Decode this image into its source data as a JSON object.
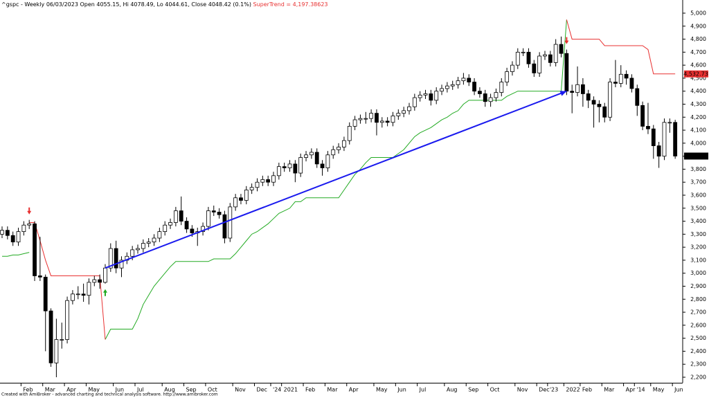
{
  "chart_data": {
    "type": "candlestick",
    "title": "^gspc - Weekly 06/03/2023 Open 4055.15, Hi 4078.49, Lo 4044.61, Close 4048.42 (0.1%)",
    "indicator_label": "SuperTrend = 4,197.38623",
    "footer": "Created with AmiBroker - advanced charting and technical analysis software. http://www.amibroker.com",
    "categories": [
      null,
      null,
      null,
      null,
      "Feb",
      null,
      null,
      null,
      "Mar",
      null,
      null,
      null,
      "Apr",
      null,
      null,
      null,
      "May",
      null,
      null,
      null,
      null,
      "Jun",
      null,
      null,
      null,
      "Jul",
      null,
      null,
      null,
      null,
      "Aug",
      null,
      null,
      null,
      "Sep",
      null,
      null,
      null,
      "Oct",
      null,
      null,
      null,
      null,
      "Nov",
      null,
      null,
      null,
      "Dec",
      null,
      null,
      "'24",
      null,
      "2021",
      null,
      null,
      null,
      "Feb",
      null,
      null,
      null,
      "Mar",
      null,
      null,
      null,
      "Apr",
      null,
      null,
      null,
      null,
      "May",
      null,
      null,
      null,
      "Jun",
      null,
      null,
      null,
      "Jul",
      null,
      null,
      null,
      null,
      "Aug",
      null,
      null,
      null,
      "Sep",
      null,
      null,
      null,
      "Oct",
      null,
      null,
      null,
      null,
      "Nov",
      null,
      null,
      null,
      "Dec",
      null,
      "'23",
      null,
      null,
      "2022",
      null,
      null,
      "Feb",
      null,
      null,
      null,
      "Mar",
      null,
      null,
      null,
      "Apr",
      null,
      "'14",
      null,
      null,
      "May",
      null,
      null,
      null,
      "Jun"
    ],
    "open": [
      3300,
      3330,
      3290,
      3240,
      3320,
      3370,
      3380,
      2980,
      2970,
      2710,
      2310,
      2490,
      2490,
      2790,
      2840,
      2840,
      2830,
      2930,
      2950,
      2930,
      3040,
      3190,
      3040,
      3100,
      3130,
      3180,
      3190,
      3230,
      3240,
      3270,
      3320,
      3370,
      3390,
      3480,
      3400,
      3340,
      3310,
      3320,
      3360,
      3480,
      3470,
      3450,
      3270,
      3510,
      3580,
      3560,
      3640,
      3660,
      3700,
      3720,
      3700,
      3750,
      3820,
      3810,
      3840,
      3770,
      3890,
      3910,
      3930,
      3840,
      3810,
      3910,
      3950,
      3970,
      4020,
      4130,
      4180,
      4190,
      4190,
      4230,
      4160,
      4170,
      4160,
      4210,
      4230,
      4250,
      4280,
      4350,
      4370,
      4380,
      4330,
      4400,
      4420,
      4440,
      4450,
      4480,
      4500,
      4470,
      4400,
      4380,
      4320,
      4350,
      4390,
      4470,
      4550,
      4600,
      4700,
      4700,
      4610,
      4540,
      4670,
      4680,
      4620,
      4760,
      4690,
      4400,
      4390,
      4450,
      4380,
      4330,
      4300,
      4280,
      4200,
      4470,
      4460,
      4530,
      4500,
      4420,
      4290,
      4130,
      4110,
      3980,
      3900,
      4160,
      4160
    ],
    "high": [
      3360,
      3360,
      3320,
      3350,
      3400,
      3410,
      3400,
      3280,
      2990,
      2730,
      2650,
      2620,
      2820,
      2870,
      2900,
      2920,
      2960,
      2980,
      2990,
      3070,
      3230,
      3250,
      3130,
      3160,
      3210,
      3220,
      3260,
      3270,
      3300,
      3350,
      3400,
      3420,
      3510,
      3590,
      3430,
      3370,
      3350,
      3390,
      3510,
      3520,
      3500,
      3480,
      3540,
      3610,
      3610,
      3670,
      3690,
      3730,
      3750,
      3750,
      3780,
      3850,
      3850,
      3870,
      3870,
      3920,
      3940,
      3960,
      3960,
      3870,
      3940,
      3980,
      4000,
      4050,
      4160,
      4210,
      4220,
      4240,
      4260,
      4260,
      4200,
      4200,
      4240,
      4260,
      4280,
      4310,
      4380,
      4400,
      4410,
      4410,
      4430,
      4450,
      4470,
      4480,
      4510,
      4540,
      4530,
      4500,
      4430,
      4410,
      4380,
      4420,
      4500,
      4580,
      4630,
      4730,
      4730,
      4730,
      4640,
      4700,
      4710,
      4710,
      4800,
      4820,
      4720,
      4450,
      4590,
      4500,
      4410,
      4360,
      4330,
      4310,
      4500,
      4640,
      4600,
      4560,
      4530,
      4450,
      4320,
      4310,
      4140,
      4010,
      4190,
      4190,
      4180
    ],
    "low": [
      3270,
      3260,
      3210,
      3210,
      3290,
      3340,
      2940,
      2940,
      2400,
      2280,
      2200,
      2420,
      2460,
      2760,
      2800,
      2780,
      2760,
      2900,
      2880,
      2920,
      3010,
      3000,
      2970,
      3070,
      3100,
      3150,
      3160,
      3200,
      3210,
      3240,
      3290,
      3340,
      3360,
      3370,
      3310,
      3280,
      3210,
      3290,
      3330,
      3440,
      3420,
      3230,
      3240,
      3480,
      3530,
      3530,
      3610,
      3630,
      3670,
      3670,
      3670,
      3720,
      3780,
      3780,
      3700,
      3740,
      3860,
      3880,
      3810,
      3750,
      3780,
      3880,
      3920,
      3940,
      3990,
      4100,
      4150,
      4150,
      4160,
      4060,
      4120,
      4130,
      4130,
      4180,
      4200,
      4220,
      4250,
      4320,
      4340,
      4290,
      4300,
      4370,
      4390,
      4410,
      4420,
      4450,
      4440,
      4370,
      4350,
      4280,
      4280,
      4320,
      4360,
      4440,
      4520,
      4570,
      4670,
      4580,
      4510,
      4510,
      4640,
      4590,
      4590,
      4660,
      4370,
      4230,
      4360,
      4280,
      4270,
      4120,
      4160,
      4160,
      4170,
      4430,
      4430,
      4450,
      4390,
      4210,
      4100,
      4070,
      3880,
      3810,
      3870,
      4080,
      3880
    ],
    "close": [
      3330,
      3290,
      3240,
      3320,
      3370,
      3380,
      2980,
      2970,
      2710,
      2310,
      2490,
      2490,
      2790,
      2840,
      2840,
      2830,
      2930,
      2950,
      2930,
      3040,
      3190,
      3040,
      3100,
      3130,
      3180,
      3190,
      3230,
      3240,
      3270,
      3320,
      3370,
      3390,
      3480,
      3400,
      3340,
      3310,
      3320,
      3360,
      3480,
      3470,
      3450,
      3270,
      3510,
      3580,
      3560,
      3640,
      3660,
      3700,
      3720,
      3700,
      3750,
      3820,
      3810,
      3840,
      3770,
      3890,
      3910,
      3930,
      3840,
      3810,
      3910,
      3950,
      3970,
      4020,
      4130,
      4180,
      4190,
      4190,
      4230,
      4160,
      4170,
      4160,
      4210,
      4230,
      4250,
      4280,
      4350,
      4370,
      4380,
      4330,
      4400,
      4420,
      4440,
      4450,
      4480,
      4500,
      4470,
      4400,
      4380,
      4320,
      4350,
      4390,
      4470,
      4550,
      4600,
      4700,
      4700,
      4610,
      4540,
      4670,
      4680,
      4620,
      4760,
      4690,
      4400,
      4390,
      4450,
      4380,
      4330,
      4300,
      4280,
      4200,
      4470,
      4460,
      4530,
      4500,
      4420,
      4290,
      4130,
      4110,
      3980,
      3900,
      4160,
      4160,
      3900.86
    ],
    "up_color": "#ffffff",
    "down_color": "#000000",
    "supertrend_up": {
      "color": "#22aa22",
      "values": [
        3130,
        3130,
        3140,
        3140,
        3150,
        3160,
        null,
        null,
        null,
        null,
        null,
        null,
        null,
        null,
        null,
        null,
        null,
        null,
        null,
        2490,
        2570,
        2570,
        2570,
        2570,
        2570,
        2650,
        2760,
        2830,
        2900,
        2950,
        3000,
        3050,
        3090,
        3090,
        3090,
        3090,
        3090,
        3090,
        3090,
        3110,
        3110,
        3110,
        3110,
        3150,
        3200,
        3250,
        3300,
        3320,
        3350,
        3380,
        3420,
        3460,
        3480,
        3500,
        3550,
        3550,
        3580,
        3580,
        3580,
        3580,
        3580,
        3580,
        3580,
        3640,
        3700,
        3760,
        3800,
        3850,
        3890,
        3890,
        3890,
        3890,
        3890,
        3920,
        3950,
        4000,
        4050,
        4080,
        4100,
        4120,
        4150,
        4180,
        4200,
        4230,
        4250,
        4300,
        4330,
        4330,
        4330,
        4330,
        4330,
        4330,
        4330,
        4360,
        4380,
        4400,
        4400,
        4400,
        4400,
        4400,
        4400,
        4400,
        4400,
        4400,
        4950,
        null,
        null,
        null,
        null,
        null,
        null,
        null,
        null,
        null,
        null,
        null,
        null,
        null,
        null,
        null,
        null,
        null,
        null,
        null,
        null
      ]
    },
    "supertrend_down": {
      "color": "#e83030",
      "values": [
        null,
        null,
        null,
        null,
        null,
        3390,
        3390,
        3250,
        3100,
        2980,
        2980,
        2980,
        2980,
        2980,
        2980,
        2980,
        2980,
        2980,
        2980,
        2490,
        null,
        null,
        null,
        null,
        null,
        null,
        null,
        null,
        null,
        null,
        null,
        null,
        null,
        null,
        null,
        null,
        null,
        null,
        null,
        null,
        null,
        null,
        null,
        null,
        null,
        null,
        null,
        null,
        null,
        null,
        null,
        null,
        null,
        null,
        null,
        null,
        null,
        null,
        null,
        null,
        null,
        null,
        null,
        null,
        null,
        null,
        null,
        null,
        null,
        null,
        null,
        null,
        null,
        null,
        null,
        null,
        null,
        null,
        null,
        null,
        null,
        null,
        null,
        null,
        null,
        null,
        null,
        null,
        null,
        null,
        null,
        null,
        null,
        null,
        null,
        null,
        null,
        null,
        null,
        null,
        null,
        null,
        null,
        null,
        4950,
        4800,
        4800,
        4800,
        4800,
        4800,
        4800,
        4750,
        4750,
        4750,
        4750,
        4750,
        4750,
        4750,
        4750,
        4720,
        4532.73,
        4532.73,
        4532.73,
        4532.73,
        4532.73
      ]
    },
    "trendline": {
      "color": "#1a1aee",
      "x": [
        19,
        104
      ],
      "y": [
        3040,
        4400
      ]
    },
    "last_close_label": "3,900.86",
    "supertrend_label": "4,532.73",
    "ylim": [
      2157.4,
      5074.5
    ],
    "yticks": [
      {
        "value": 2200,
        "label": "2,200"
      },
      {
        "value": 2300,
        "label": "2,300"
      },
      {
        "value": 2400,
        "label": "2,400"
      },
      {
        "value": 2500,
        "label": "2,500"
      },
      {
        "value": 2600,
        "label": "2,600"
      },
      {
        "value": 2700,
        "label": "2,700"
      },
      {
        "value": 2800,
        "label": "2,800"
      },
      {
        "value": 2900,
        "label": "2,900"
      },
      {
        "value": 3000,
        "label": "3,000"
      },
      {
        "value": 3100,
        "label": "3,100"
      },
      {
        "value": 3200,
        "label": "3,200"
      },
      {
        "value": 3300,
        "label": "3,300"
      },
      {
        "value": 3400,
        "label": "3,400"
      },
      {
        "value": 3500,
        "label": "3,500"
      },
      {
        "value": 3600,
        "label": "3,600"
      },
      {
        "value": 3700,
        "label": "3,700"
      },
      {
        "value": 3800,
        "label": "3,800"
      },
      {
        "value": 3900,
        "label": "3,900"
      },
      {
        "value": 4000,
        "label": "4,000"
      },
      {
        "value": 4100,
        "label": "4,100"
      },
      {
        "value": 4200,
        "label": "4,200"
      },
      {
        "value": 4300,
        "label": "4,300"
      },
      {
        "value": 4400,
        "label": "4,400"
      },
      {
        "value": 4500,
        "label": "4,500"
      },
      {
        "value": 4600,
        "label": "4,600"
      },
      {
        "value": 4700,
        "label": "4,700"
      },
      {
        "value": 4800,
        "label": "4,800"
      },
      {
        "value": 4900,
        "label": "4,900"
      },
      {
        "value": 5000,
        "label": "5,000"
      }
    ]
  }
}
